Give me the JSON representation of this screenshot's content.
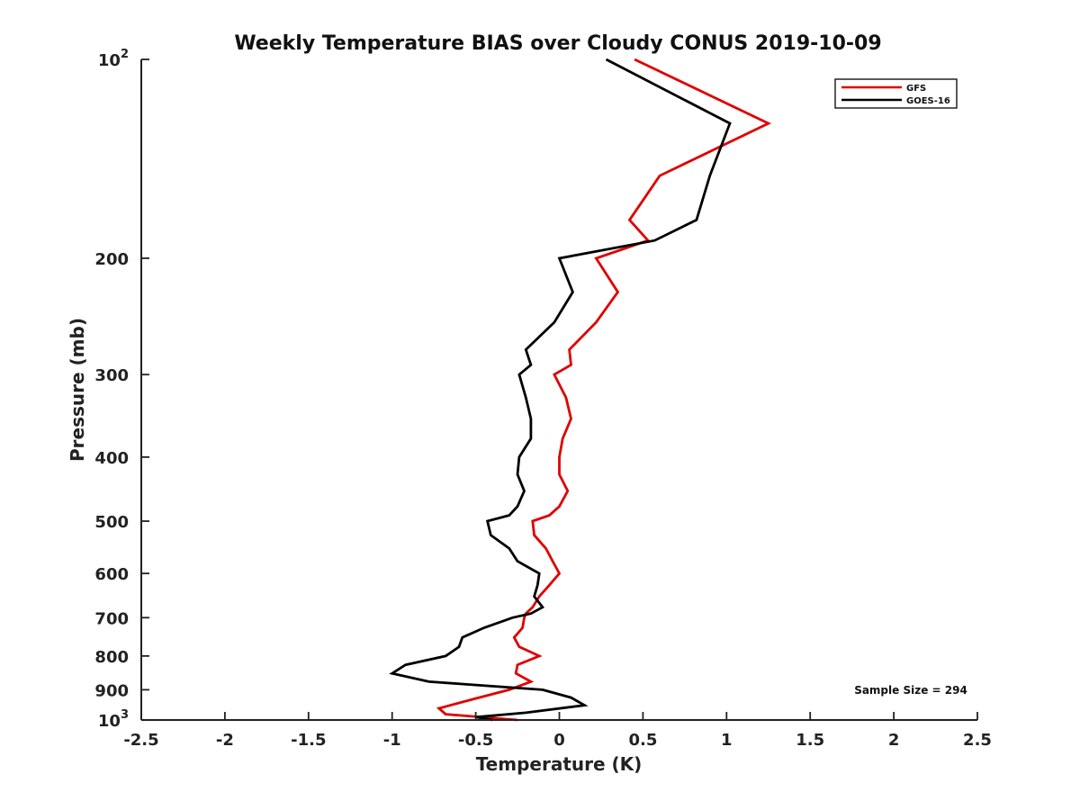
{
  "chart_data": {
    "type": "line",
    "title": "Weekly Temperature BIAS over Cloudy CONUS 2019-10-09",
    "xlabel": "Temperature (K)",
    "ylabel": "Pressure (mb)",
    "xlim": [
      -2.5,
      2.5
    ],
    "ylim": [
      1000,
      100
    ],
    "y_scale": "log",
    "y_reversed": true,
    "x_ticks": [
      "-2.5",
      "-2",
      "-1.5",
      "-1",
      "-0.5",
      "0",
      "0.5",
      "1",
      "1.5",
      "2",
      "2.5"
    ],
    "y_ticks": [
      {
        "value": 100,
        "base": "10",
        "exp": "2"
      },
      {
        "value": 200,
        "label": "200"
      },
      {
        "value": 300,
        "label": "300"
      },
      {
        "value": 400,
        "label": "400"
      },
      {
        "value": 500,
        "label": "500"
      },
      {
        "value": 600,
        "label": "600"
      },
      {
        "value": 700,
        "label": "700"
      },
      {
        "value": 800,
        "label": "800"
      },
      {
        "value": 900,
        "label": "900"
      },
      {
        "value": 1000,
        "base": "10",
        "exp": "3"
      }
    ],
    "legend_position": "top-right",
    "series": [
      {
        "name": "GFS",
        "color": "#e00000",
        "points": [
          [
            0.45,
            100
          ],
          [
            1.25,
            125
          ],
          [
            0.6,
            150
          ],
          [
            0.42,
            175
          ],
          [
            0.53,
            188
          ],
          [
            0.22,
            200
          ],
          [
            0.35,
            225
          ],
          [
            0.22,
            250
          ],
          [
            0.06,
            275
          ],
          [
            0.07,
            290
          ],
          [
            -0.03,
            300
          ],
          [
            0.04,
            325
          ],
          [
            0.07,
            350
          ],
          [
            0.02,
            375
          ],
          [
            0.0,
            400
          ],
          [
            0.0,
            425
          ],
          [
            0.05,
            450
          ],
          [
            0.0,
            475
          ],
          [
            -0.06,
            490
          ],
          [
            -0.16,
            500
          ],
          [
            -0.15,
            525
          ],
          [
            -0.08,
            550
          ],
          [
            -0.04,
            575
          ],
          [
            0.0,
            600
          ],
          [
            -0.06,
            625
          ],
          [
            -0.12,
            650
          ],
          [
            -0.16,
            675
          ],
          [
            -0.2,
            690
          ],
          [
            -0.21,
            700
          ],
          [
            -0.22,
            725
          ],
          [
            -0.27,
            750
          ],
          [
            -0.24,
            775
          ],
          [
            -0.12,
            800
          ],
          [
            -0.25,
            825
          ],
          [
            -0.26,
            850
          ],
          [
            -0.17,
            875
          ],
          [
            -0.3,
            900
          ],
          [
            -0.48,
            925
          ],
          [
            -0.72,
            960
          ],
          [
            -0.68,
            980
          ],
          [
            -0.25,
            1000
          ]
        ]
      },
      {
        "name": "GOES-16",
        "color": "#000000",
        "points": [
          [
            0.28,
            100
          ],
          [
            1.02,
            125
          ],
          [
            0.9,
            150
          ],
          [
            0.82,
            175
          ],
          [
            0.57,
            188
          ],
          [
            0.0,
            200
          ],
          [
            0.08,
            225
          ],
          [
            -0.03,
            250
          ],
          [
            -0.2,
            275
          ],
          [
            -0.17,
            290
          ],
          [
            -0.24,
            300
          ],
          [
            -0.2,
            325
          ],
          [
            -0.17,
            350
          ],
          [
            -0.17,
            375
          ],
          [
            -0.24,
            400
          ],
          [
            -0.25,
            425
          ],
          [
            -0.21,
            450
          ],
          [
            -0.25,
            475
          ],
          [
            -0.3,
            490
          ],
          [
            -0.43,
            500
          ],
          [
            -0.41,
            525
          ],
          [
            -0.3,
            550
          ],
          [
            -0.25,
            575
          ],
          [
            -0.12,
            600
          ],
          [
            -0.13,
            625
          ],
          [
            -0.15,
            650
          ],
          [
            -0.1,
            675
          ],
          [
            -0.17,
            690
          ],
          [
            -0.28,
            700
          ],
          [
            -0.45,
            725
          ],
          [
            -0.58,
            750
          ],
          [
            -0.6,
            775
          ],
          [
            -0.68,
            800
          ],
          [
            -0.92,
            825
          ],
          [
            -1.0,
            850
          ],
          [
            -0.78,
            875
          ],
          [
            -0.1,
            900
          ],
          [
            0.07,
            925
          ],
          [
            0.15,
            950
          ],
          [
            -0.2,
            975
          ],
          [
            -0.5,
            990
          ],
          [
            -0.4,
            1000
          ]
        ]
      }
    ],
    "annotations": [
      "Sample Size = 294"
    ]
  }
}
